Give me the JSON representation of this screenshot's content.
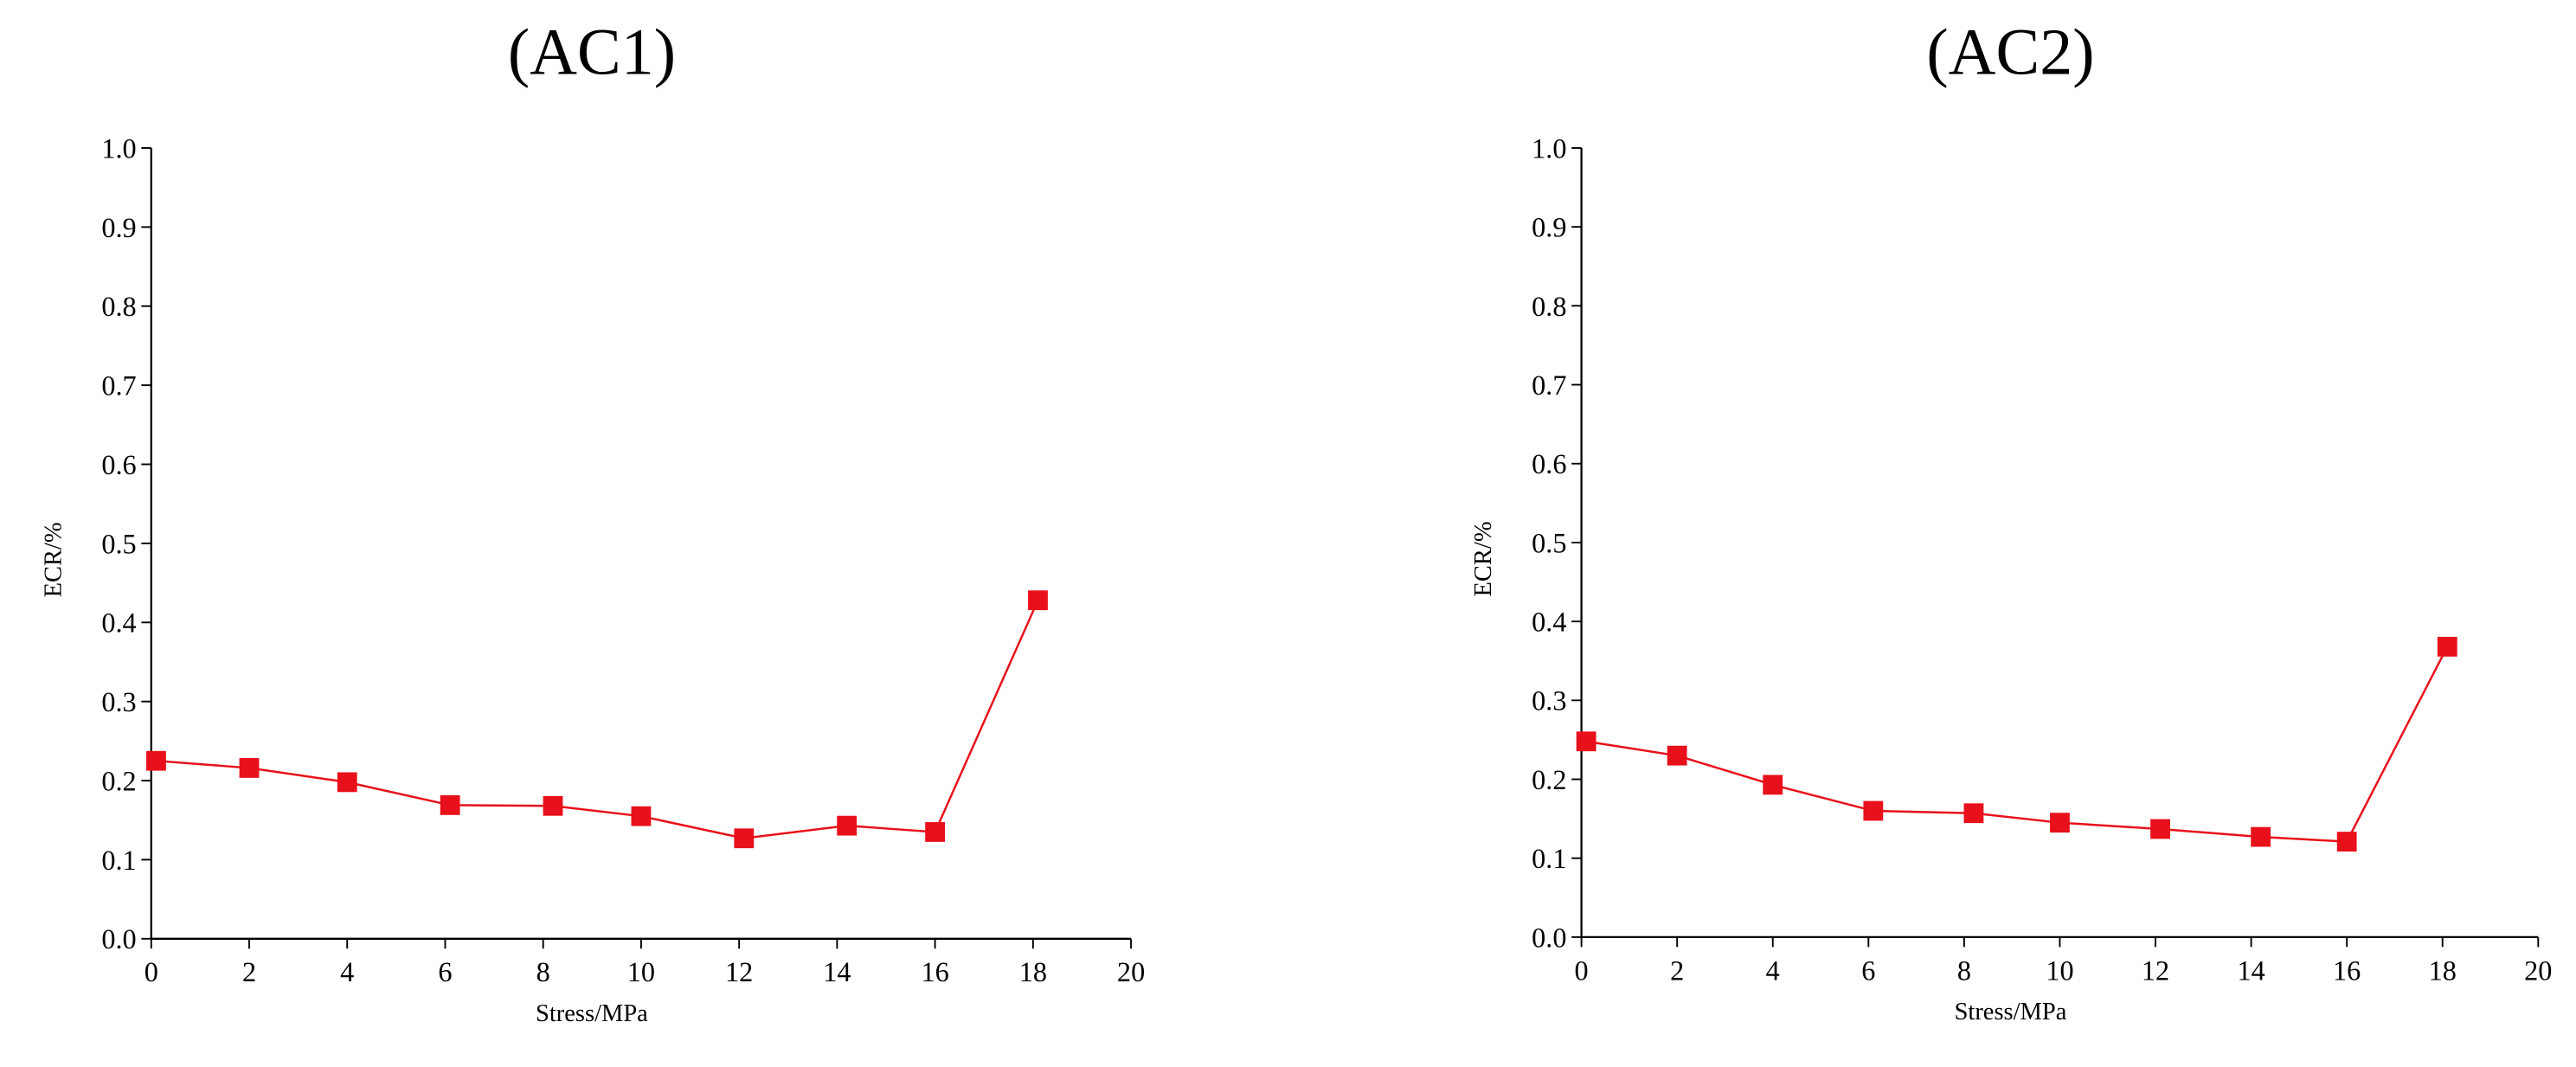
{
  "chart_data": [
    {
      "type": "line",
      "title": "(AC1)",
      "x_label": "Stress/MPa",
      "y_label": "ECR/%",
      "x": [
        0.1,
        2,
        4,
        6.1,
        8.2,
        10,
        12.1,
        14.2,
        16,
        18.1
      ],
      "series": [
        {
          "color": "#e8101a",
          "values": [
            0.225,
            0.216,
            0.198,
            0.169,
            0.168,
            0.155,
            0.127,
            0.143,
            0.135,
            0.428
          ]
        }
      ],
      "xlim": [
        0,
        20
      ],
      "xticks": [
        0,
        2,
        4,
        6,
        8,
        10,
        12,
        14,
        16,
        18,
        20
      ],
      "ylim": [
        0,
        1
      ],
      "yticks": [
        {
          "value": 0,
          "label": "0.0"
        },
        0.1,
        0.2,
        0.3,
        0.4,
        0.5,
        0.6,
        0.7,
        0.8,
        0.9,
        {
          "value": 1,
          "label": "1.0"
        }
      ]
    },
    {
      "type": "line",
      "title": "(AC2)",
      "x_label": "Stress/MPa",
      "y_label": "ECR/%",
      "x": [
        0.1,
        2,
        4,
        6.1,
        8.2,
        10,
        12.1,
        14.2,
        16,
        18.1
      ],
      "series": [
        {
          "color": "#e8101a",
          "values": [
            0.248,
            0.23,
            0.193,
            0.16,
            0.157,
            0.145,
            0.137,
            0.127,
            0.121,
            0.368
          ]
        }
      ],
      "xlim": [
        0,
        20
      ],
      "xticks": [
        0,
        2,
        4,
        6,
        8,
        10,
        12,
        14,
        16,
        18,
        20
      ],
      "ylim": [
        0,
        1
      ],
      "yticks": [
        {
          "value": 0,
          "label": "0.0"
        },
        0.1,
        0.2,
        0.3,
        0.4,
        0.5,
        0.6,
        0.7,
        0.8,
        0.9,
        {
          "value": 1,
          "label": "1.0"
        }
      ]
    }
  ]
}
